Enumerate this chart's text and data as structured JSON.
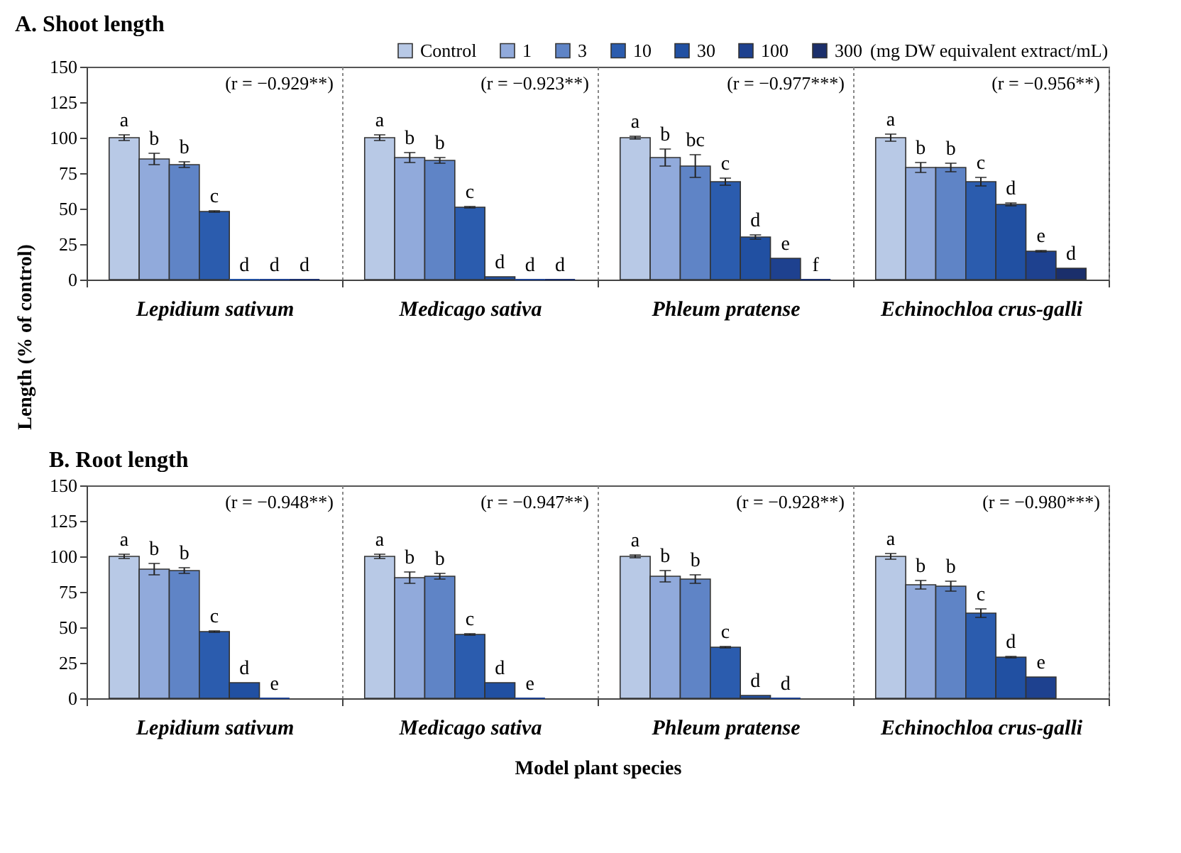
{
  "chart_data": [
    {
      "type": "bar",
      "title": "A. Shoot length",
      "ylabel": "Length (% of control)",
      "legend": "top right",
      "legend_title": "(mg DW equivalent extract/mL)",
      "grid": "x",
      "categories": [
        "Lepidium sativum",
        "Medicago sativa",
        "Phleum pratense",
        "Echinochloa crus-galli"
      ],
      "ylim": [
        0,
        150
      ],
      "yticks": [
        0,
        25,
        50,
        75,
        100,
        125,
        150
      ],
      "annotations": [
        "(r = −0.929**)",
        "(r = −0.923**)",
        "(r = −0.977***)",
        "(r = −0.956**)"
      ],
      "series": [
        {
          "name": "Control",
          "color": "#b8c9e6",
          "values": [
            100,
            100,
            100,
            100
          ],
          "errors": [
            2,
            2,
            1,
            2.5
          ],
          "value_labels": [
            "a",
            "a",
            "a",
            "a"
          ]
        },
        {
          "name": "1",
          "color": "#91aadb",
          "values": [
            85,
            86,
            86,
            79
          ],
          "errors": [
            4,
            3.5,
            6,
            3.5
          ],
          "value_labels": [
            "b",
            "b",
            "b",
            "b"
          ]
        },
        {
          "name": "3",
          "color": "#5f84c6",
          "values": [
            81,
            84,
            80,
            79
          ],
          "errors": [
            2,
            2,
            8,
            3
          ],
          "value_labels": [
            "b",
            "b",
            "bc",
            "b"
          ]
        },
        {
          "name": "10",
          "color": "#2b5cae",
          "values": [
            48,
            51,
            69,
            69
          ],
          "errors": [
            0.5,
            0.5,
            2.5,
            3
          ],
          "value_labels": [
            "c",
            "c",
            "c",
            "c"
          ]
        },
        {
          "name": "30",
          "color": "#2150a2",
          "values": [
            0,
            2,
            30,
            53
          ],
          "errors": [
            null,
            null,
            1.5,
            1
          ],
          "value_labels": [
            "d",
            "d",
            "d",
            "d"
          ]
        },
        {
          "name": "100",
          "color": "#1e418f",
          "values": [
            0,
            0,
            15,
            20
          ],
          "errors": [
            null,
            null,
            null,
            0.5
          ],
          "value_labels": [
            "d",
            "d",
            "e",
            "e"
          ]
        },
        {
          "name": "300",
          "color": "#1b2f6b",
          "values": [
            0,
            0,
            0,
            8
          ],
          "errors": [
            null,
            null,
            null,
            null
          ],
          "value_labels": [
            "d",
            "d",
            "f",
            "d"
          ]
        }
      ]
    },
    {
      "type": "bar",
      "title": "B. Root length",
      "xlabel": "Model plant species",
      "grid": "x",
      "categories": [
        "Lepidium sativum",
        "Medicago sativa",
        "Phleum pratense",
        "Echinochloa crus-galli"
      ],
      "ylim": [
        0,
        150
      ],
      "yticks": [
        0,
        25,
        50,
        75,
        100,
        125,
        150
      ],
      "annotations": [
        "(r = −0.948**)",
        "(r = −0.947**)",
        "(r = −0.928**)",
        "(r = −0.980***)"
      ],
      "series": [
        {
          "color": "#b8c9e6",
          "values": [
            100,
            100,
            100,
            100
          ],
          "errors": [
            1.5,
            1.5,
            1,
            2
          ],
          "value_labels": [
            "a",
            "a",
            "a",
            "a"
          ]
        },
        {
          "color": "#91aadb",
          "values": [
            91,
            85,
            86,
            80
          ],
          "errors": [
            4,
            4,
            4,
            3
          ],
          "value_labels": [
            "b",
            "b",
            "b",
            "b"
          ]
        },
        {
          "color": "#5f84c6",
          "values": [
            90,
            86,
            84,
            79
          ],
          "errors": [
            2,
            2,
            3,
            3.5
          ],
          "value_labels": [
            "b",
            "b",
            "b",
            "b"
          ]
        },
        {
          "color": "#2b5cae",
          "values": [
            47,
            45,
            36,
            60
          ],
          "errors": [
            0.5,
            0.5,
            0.5,
            3
          ],
          "value_labels": [
            "c",
            "c",
            "c",
            "c"
          ]
        },
        {
          "color": "#2150a2",
          "values": [
            11,
            11,
            2,
            29
          ],
          "errors": [
            null,
            null,
            null,
            0.5
          ],
          "value_labels": [
            "d",
            "d",
            "d",
            "d"
          ]
        },
        {
          "color": "#1e418f",
          "values": [
            0,
            0,
            0,
            15
          ],
          "errors": [
            null,
            null,
            null,
            null
          ],
          "value_labels": [
            "e",
            "e",
            "d",
            "e"
          ]
        },
        {
          "color": "#1b2f6b",
          "values": [
            null,
            null,
            null,
            null
          ],
          "errors": [
            null,
            null,
            null,
            null
          ],
          "value_labels": [
            null,
            null,
            null,
            null
          ]
        }
      ]
    }
  ]
}
